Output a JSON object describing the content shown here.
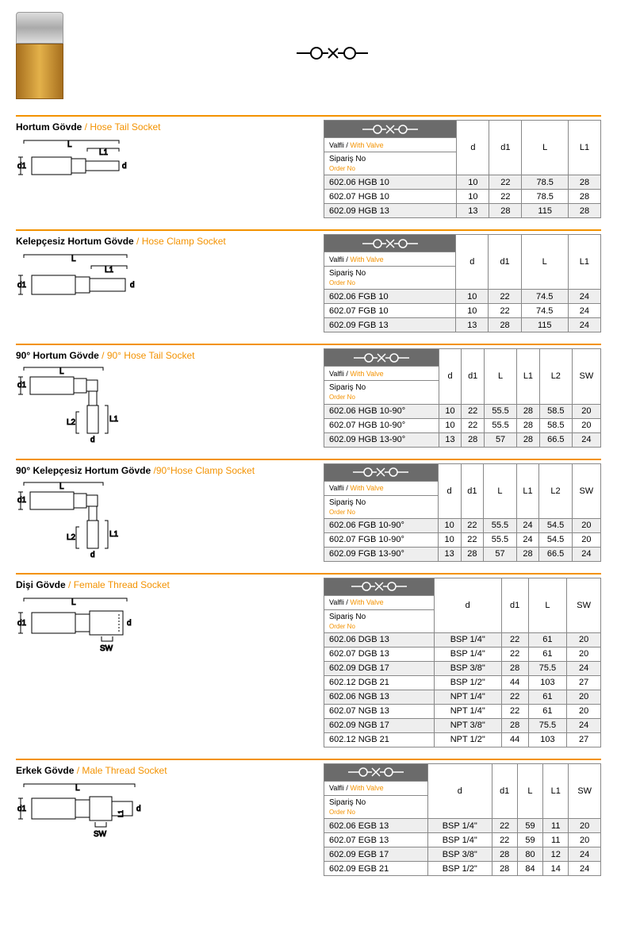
{
  "labels": {
    "valfli_tr": "Valfli / ",
    "valfli_en": "With Valve",
    "siparis_tr": "Sipariş No",
    "siparis_en": "Order No"
  },
  "sections": [
    {
      "title_tr": "Hortum Gövde",
      "title_en": " / Hose Tail Socket",
      "diagram": "hose-tail",
      "columns": [
        "d",
        "d1",
        "L",
        "L1"
      ],
      "rows": [
        {
          "pn": "602.06 HGB 10",
          "v": [
            "10",
            "22",
            "78.5",
            "28"
          ]
        },
        {
          "pn": "602.07 HGB 10",
          "v": [
            "10",
            "22",
            "78.5",
            "28"
          ]
        },
        {
          "pn": "602.09 HGB 13",
          "v": [
            "13",
            "28",
            "115",
            "28"
          ]
        }
      ]
    },
    {
      "title_tr": "Kelepçesiz Hortum Gövde",
      "title_en": " / Hose Clamp Socket",
      "diagram": "hose-clamp",
      "columns": [
        "d",
        "d1",
        "L",
        "L1"
      ],
      "rows": [
        {
          "pn": "602.06 FGB 10",
          "v": [
            "10",
            "22",
            "74.5",
            "24"
          ]
        },
        {
          "pn": "602.07 FGB 10",
          "v": [
            "10",
            "22",
            "74.5",
            "24"
          ]
        },
        {
          "pn": "602.09 FGB 13",
          "v": [
            "13",
            "28",
            "115",
            "24"
          ]
        }
      ]
    },
    {
      "title_tr": "90° Hortum Gövde",
      "title_en": " / 90° Hose Tail Socket",
      "diagram": "hose-tail-90",
      "columns": [
        "d",
        "d1",
        "L",
        "L1",
        "L2",
        "SW"
      ],
      "rows": [
        {
          "pn": "602.06 HGB 10-90°",
          "v": [
            "10",
            "22",
            "55.5",
            "28",
            "58.5",
            "20"
          ]
        },
        {
          "pn": "602.07 HGB 10-90°",
          "v": [
            "10",
            "22",
            "55.5",
            "28",
            "58.5",
            "20"
          ]
        },
        {
          "pn": "602.09 HGB 13-90°",
          "v": [
            "13",
            "28",
            "57",
            "28",
            "66.5",
            "24"
          ]
        }
      ]
    },
    {
      "title_tr": "90° Kelepçesiz Hortum Gövde",
      "title_en": " /90°Hose Clamp Socket",
      "diagram": "hose-clamp-90",
      "columns": [
        "d",
        "d1",
        "L",
        "L1",
        "L2",
        "SW"
      ],
      "rows": [
        {
          "pn": "602.06 FGB 10-90°",
          "v": [
            "10",
            "22",
            "55.5",
            "24",
            "54.5",
            "20"
          ]
        },
        {
          "pn": "602.07 FGB 10-90°",
          "v": [
            "10",
            "22",
            "55.5",
            "24",
            "54.5",
            "20"
          ]
        },
        {
          "pn": "602.09 FGB 13-90°",
          "v": [
            "13",
            "28",
            "57",
            "28",
            "66.5",
            "24"
          ]
        }
      ]
    },
    {
      "title_tr": "Dişi Gövde",
      "title_en": " / Female Thread Socket",
      "diagram": "female-thread",
      "columns": [
        "d",
        "d1",
        "L",
        "SW"
      ],
      "rows": [
        {
          "pn": "602.06 DGB 13",
          "v": [
            "BSP 1/4\"",
            "22",
            "61",
            "20"
          ]
        },
        {
          "pn": "602.07 DGB 13",
          "v": [
            "BSP 1/4\"",
            "22",
            "61",
            "20"
          ]
        },
        {
          "pn": "602.09 DGB 17",
          "v": [
            "BSP 3/8\"",
            "28",
            "75.5",
            "24"
          ]
        },
        {
          "pn": "602.12 DGB 21",
          "v": [
            "BSP 1/2\"",
            "44",
            "103",
            "27"
          ]
        },
        {
          "pn": "602.06 NGB 13",
          "v": [
            "NPT 1/4\"",
            "22",
            "61",
            "20"
          ]
        },
        {
          "pn": "602.07 NGB 13",
          "v": [
            "NPT 1/4\"",
            "22",
            "61",
            "20"
          ]
        },
        {
          "pn": "602.09 NGB 17",
          "v": [
            "NPT 3/8\"",
            "28",
            "75.5",
            "24"
          ]
        },
        {
          "pn": "602.12 NGB 21",
          "v": [
            "NPT 1/2\"",
            "44",
            "103",
            "27"
          ]
        }
      ]
    },
    {
      "title_tr": "Erkek Gövde",
      "title_en": " / Male Thread Socket",
      "diagram": "male-thread",
      "columns": [
        "d",
        "d1",
        "L",
        "L1",
        "SW"
      ],
      "rows": [
        {
          "pn": "602.06 EGB 13",
          "v": [
            "BSP 1/4\"",
            "22",
            "59",
            "11",
            "20"
          ]
        },
        {
          "pn": "602.07 EGB 13",
          "v": [
            "BSP 1/4\"",
            "22",
            "59",
            "11",
            "20"
          ]
        },
        {
          "pn": "602.09 EGB 17",
          "v": [
            "BSP 3/8\"",
            "28",
            "80",
            "12",
            "24"
          ]
        },
        {
          "pn": "602.09 EGB 21",
          "v": [
            "BSP 1/2\"",
            "28",
            "84",
            "14",
            "24"
          ]
        }
      ]
    }
  ]
}
